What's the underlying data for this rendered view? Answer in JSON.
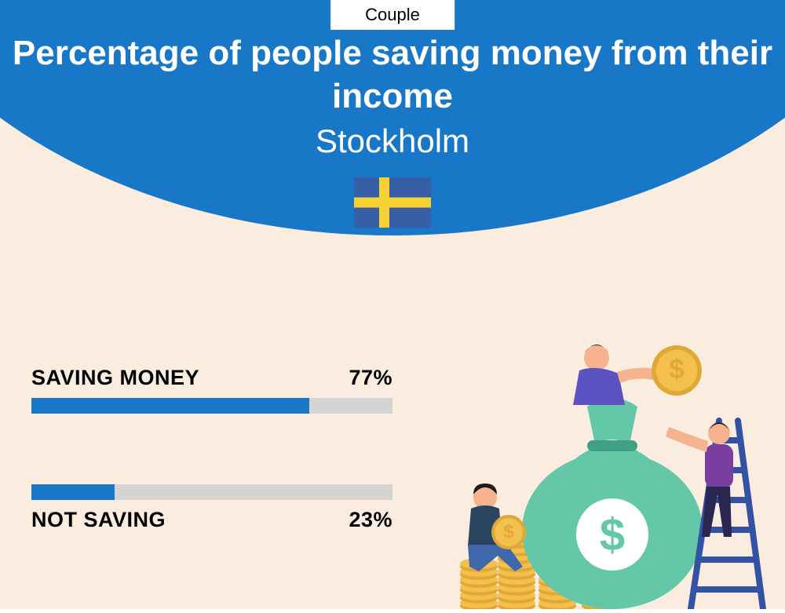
{
  "layout": {
    "page_bg": "#faede0",
    "hero_bg": "#1878c7",
    "text_on_hero": "#ffffff",
    "headline_fontsize": 44,
    "subhead_fontsize": 42
  },
  "tab": {
    "label": "Couple"
  },
  "header": {
    "title": "Percentage of people saving money from their income",
    "city": "Stockholm"
  },
  "flag": {
    "width": 98,
    "height": 64,
    "field_color": "#365fa8",
    "cross_color": "#f7d134",
    "cross_thickness": 13,
    "cross_offset_x": 32
  },
  "bars": {
    "type": "bar",
    "track_color": "#d4d4d4",
    "fill_color": "#1878c7",
    "track_width": 460,
    "track_height": 20,
    "series": [
      {
        "label": "SAVING MONEY",
        "value": 77,
        "display": "77%",
        "label_position": "above"
      },
      {
        "label": "NOT SAVING",
        "value": 23,
        "display": "23%",
        "label_position": "below"
      }
    ]
  },
  "illustration": {
    "bag_color": "#64c7a8",
    "bag_dark": "#41a185",
    "coin_color": "#f3c04d",
    "coin_edge": "#e0a836",
    "ladder_color": "#3452a3",
    "person1_top": "#5c52c2",
    "person1_pants": "#2a2551",
    "person2_top": "#28445e",
    "person2_pants": "#3e68a9",
    "person3_top": "#7a3da0",
    "person3_pants": "#2a2551",
    "skin": "#f6b38e",
    "hair": "#1f1c1c",
    "dollar_sign": "$"
  }
}
